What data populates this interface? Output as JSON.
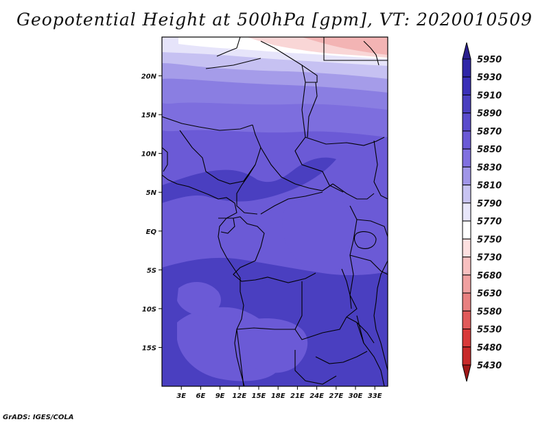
{
  "title": "Geopotential Height at 500hPa [gpm], VT: 2020010509",
  "footer": "GrADS: IGES/COLA",
  "map": {
    "lon_range": [
      0,
      35
    ],
    "lat_range": [
      -20,
      25
    ],
    "x_ticks": [
      "3E",
      "6E",
      "9E",
      "12E",
      "15E",
      "18E",
      "21E",
      "24E",
      "27E",
      "30E",
      "33E"
    ],
    "y_ticks": [
      "20N",
      "15N",
      "10N",
      "5N",
      "EQ",
      "5S",
      "10S",
      "15S"
    ],
    "field_colors": {
      "deep": "#4a3fc0",
      "mid": "#6b5ad6",
      "light": "#8a7ee2",
      "pale": "#b8b2ef",
      "paler": "#d8d6f6",
      "white": "#ffffff",
      "pink": "#f8d0d0",
      "rose": "#f0a8a8",
      "border": "#000000"
    }
  },
  "colorbar": {
    "levels": [
      "5950",
      "5930",
      "5910",
      "5890",
      "5870",
      "5850",
      "5830",
      "5810",
      "5790",
      "5770",
      "5750",
      "5730",
      "5680",
      "5630",
      "5580",
      "5530",
      "5480",
      "5430"
    ],
    "colors": [
      "#2a1f8f",
      "#2f26a8",
      "#3a30b8",
      "#4a3fc0",
      "#5a4ccc",
      "#6b5ad6",
      "#8070e0",
      "#a096e8",
      "#c8c4f2",
      "#e8e6fa",
      "#ffffff",
      "#fde0e0",
      "#f8c0c0",
      "#f0a0a0",
      "#e88080",
      "#e05a5a",
      "#d83a3a",
      "#c82a2a",
      "#a01818"
    ]
  }
}
